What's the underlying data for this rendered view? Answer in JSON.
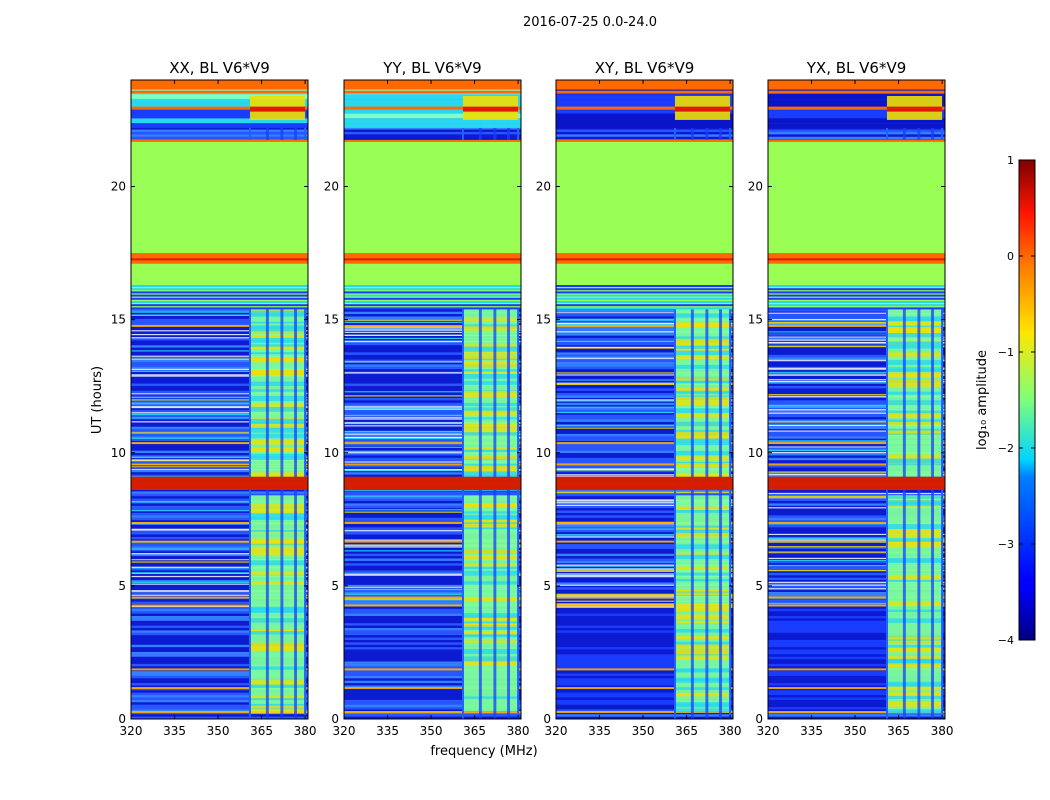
{
  "figure": {
    "suptitle": "2016-07-25 0.0-24.0",
    "ylabel": "UT (hours)",
    "xlabel": "frequency (MHz)"
  },
  "colors": {
    "bg": "#ffffff",
    "flag_green": "#99ff55",
    "band_orange": "#ff6a00",
    "band_red": "#e01a00",
    "noise_blue": "#1a3cff",
    "noise_dark": "#0a14c8",
    "rfi_yellow": "#f0e000",
    "cyan": "#28d8f0"
  },
  "chart_data": [
    {
      "type": "heatmap",
      "title": "XX, BL V6*V9",
      "polarization": "XX",
      "baseline": "V6*V9",
      "xlim": [
        320,
        381
      ],
      "ylim": [
        0,
        24
      ],
      "xticks": [
        "320",
        "335",
        "350",
        "365",
        "380"
      ],
      "yticks": [
        "0",
        "5",
        "10",
        "15",
        "20"
      ],
      "xtick_values": [
        320,
        335,
        350,
        365,
        380
      ],
      "ytick_values": [
        0,
        5,
        10,
        15,
        20
      ]
    },
    {
      "type": "heatmap",
      "title": "YY, BL V6*V9",
      "polarization": "YY",
      "baseline": "V6*V9",
      "xlim": [
        320,
        381
      ],
      "ylim": [
        0,
        24
      ],
      "xticks": [
        "320",
        "335",
        "350",
        "365",
        "380"
      ],
      "yticks": [
        "0",
        "5",
        "10",
        "15",
        "20"
      ],
      "xtick_values": [
        320,
        335,
        350,
        365,
        380
      ],
      "ytick_values": [
        0,
        5,
        10,
        15,
        20
      ]
    },
    {
      "type": "heatmap",
      "title": "XY, BL V6*V9",
      "polarization": "XY",
      "baseline": "V6*V9",
      "xlim": [
        320,
        381
      ],
      "ylim": [
        0,
        24
      ],
      "xticks": [
        "320",
        "335",
        "350",
        "365",
        "380"
      ],
      "yticks": [
        "0",
        "5",
        "10",
        "15",
        "20"
      ],
      "xtick_values": [
        320,
        335,
        350,
        365,
        380
      ],
      "ytick_values": [
        0,
        5,
        10,
        15,
        20
      ]
    },
    {
      "type": "heatmap",
      "title": "YX, BL V6*V9",
      "polarization": "YX",
      "baseline": "V6*V9",
      "xlim": [
        320,
        381
      ],
      "ylim": [
        0,
        24
      ],
      "xticks": [
        "320",
        "335",
        "350",
        "365",
        "380"
      ],
      "yticks": [
        "0",
        "5",
        "10",
        "15",
        "20"
      ],
      "xtick_values": [
        320,
        335,
        350,
        365,
        380
      ],
      "ytick_values": [
        0,
        5,
        10,
        15,
        20
      ]
    }
  ],
  "features": {
    "flagged_block_ut": [
      15.4,
      21.7
    ],
    "flagged_block_value": -0.9,
    "saturated_bands_ut": [
      [
        17.1,
        17.5
      ],
      [
        8.6,
        9.1
      ]
    ],
    "rfi_band_mhz": [
      361,
      380
    ],
    "rfi_gap_channels_mhz": [
      [
        366.5,
        367.5
      ],
      [
        371.5,
        372.5
      ],
      [
        376.2,
        377.2
      ]
    ],
    "quiet_block_ut": [
      0.3,
      4.2
    ],
    "top_band_ut": [
      22.2,
      24.0
    ]
  },
  "colorbar": {
    "label": "log₁₀ amplitude",
    "ticks": [
      "1",
      "0",
      "−1",
      "−2",
      "−3",
      "−4"
    ],
    "tick_values": [
      1,
      0,
      -1,
      -2,
      -3,
      -4
    ],
    "vmin": -4,
    "vmax": 1,
    "colormap": "jet"
  }
}
